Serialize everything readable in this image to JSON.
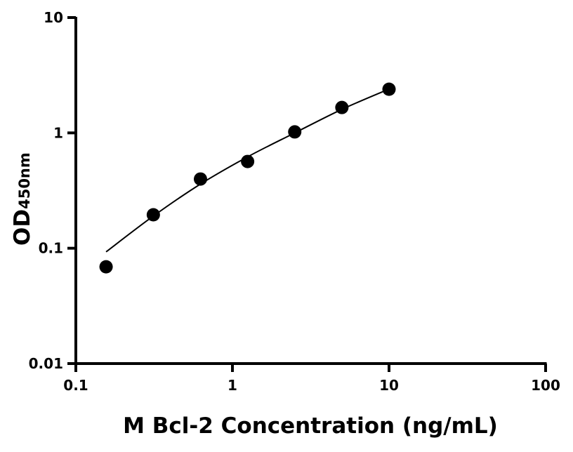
{
  "chart_data": {
    "type": "scatter",
    "title": "",
    "xlabel": "M Bcl-2 Concentration (ng/mL)",
    "ylabel_main": "OD",
    "ylabel_sub": "450nm",
    "x_scale": "log",
    "y_scale": "log",
    "xlim": [
      0.1,
      100
    ],
    "ylim": [
      0.01,
      10
    ],
    "x_ticks": [
      {
        "value": 0.1,
        "label": "0.1"
      },
      {
        "value": 1,
        "label": "1"
      },
      {
        "value": 10,
        "label": "10"
      },
      {
        "value": 100,
        "label": "100"
      }
    ],
    "y_ticks": [
      {
        "value": 0.01,
        "label": "0.01"
      },
      {
        "value": 0.1,
        "label": "0.1"
      },
      {
        "value": 1,
        "label": "1"
      },
      {
        "value": 10,
        "label": "10"
      }
    ],
    "grid": false,
    "series": [
      {
        "points": [
          {
            "x": 0.156,
            "y": 0.069
          },
          {
            "x": 0.3125,
            "y": 0.195
          },
          {
            "x": 0.625,
            "y": 0.398
          },
          {
            "x": 1.25,
            "y": 0.565
          },
          {
            "x": 2.5,
            "y": 1.02
          },
          {
            "x": 5,
            "y": 1.66
          },
          {
            "x": 10,
            "y": 2.39
          }
        ],
        "color": "#000000"
      }
    ],
    "fit_curve": [
      {
        "x": 0.156,
        "y": 0.093
      },
      {
        "x": 0.3125,
        "y": 0.19
      },
      {
        "x": 0.625,
        "y": 0.36
      },
      {
        "x": 1.25,
        "y": 0.62
      },
      {
        "x": 2.5,
        "y": 1.0
      },
      {
        "x": 5,
        "y": 1.6
      },
      {
        "x": 10,
        "y": 2.4
      }
    ]
  }
}
